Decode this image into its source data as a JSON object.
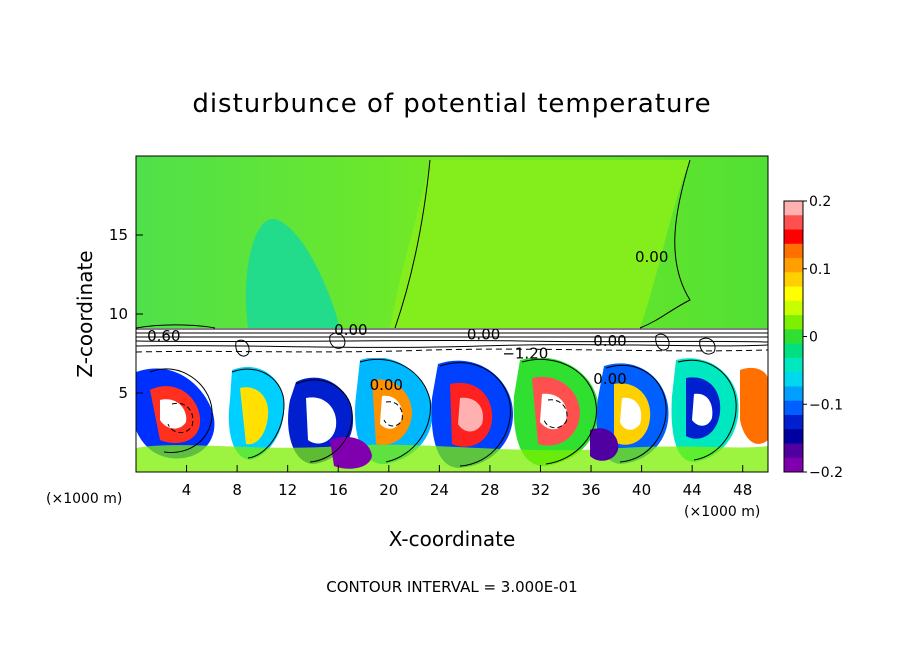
{
  "chart_data": {
    "type": "heatmap",
    "title": "disturbunce of potential temperature",
    "xlabel": "X-coordinate",
    "ylabel": "Z-coordinate",
    "x_unit_label": "(×1000 m)",
    "z_unit_label": "(×1000 m)",
    "xlim": [
      0,
      50
    ],
    "ylim": [
      0,
      20
    ],
    "x_ticks": [
      4,
      8,
      12,
      16,
      20,
      24,
      28,
      32,
      36,
      40,
      44,
      48
    ],
    "y_ticks": [
      5,
      10,
      15
    ],
    "colorbar": {
      "range": [
        -0.2,
        0.2
      ],
      "tick_labels": [
        "0.2",
        "0.1",
        "0",
        "−0.1",
        "−0.2"
      ],
      "tick_values": [
        0.2,
        0.1,
        0,
        -0.1,
        -0.2
      ],
      "colors": [
        "#ffb0b0",
        "#ff5050",
        "#ff0000",
        "#ff7000",
        "#ffa000",
        "#ffd000",
        "#ffff00",
        "#c8ff00",
        "#7cf000",
        "#30e030",
        "#00e080",
        "#00e8c0",
        "#00d8f0",
        "#00a0ff",
        "#0060ff",
        "#0020d0",
        "#0000a0",
        "#5000a0",
        "#8000b0"
      ]
    },
    "contour_labels": [
      {
        "text": "0.00",
        "x": 40.8,
        "z": 13.6
      },
      {
        "text": "0.60",
        "x": 2.2,
        "z": 8.6
      },
      {
        "text": "0.00",
        "x": 17.0,
        "z": 9.0
      },
      {
        "text": "0.00",
        "x": 27.5,
        "z": 8.7
      },
      {
        "text": "−1.20",
        "x": 30.8,
        "z": 7.5
      },
      {
        "text": "0.00",
        "x": 37.5,
        "z": 8.3
      },
      {
        "text": "0.00",
        "x": 19.8,
        "z": 5.5
      },
      {
        "text": "0.00",
        "x": 37.5,
        "z": 5.9
      }
    ],
    "contour_interval_text": "CONTOUR INTERVAL = 3.000E-01"
  }
}
